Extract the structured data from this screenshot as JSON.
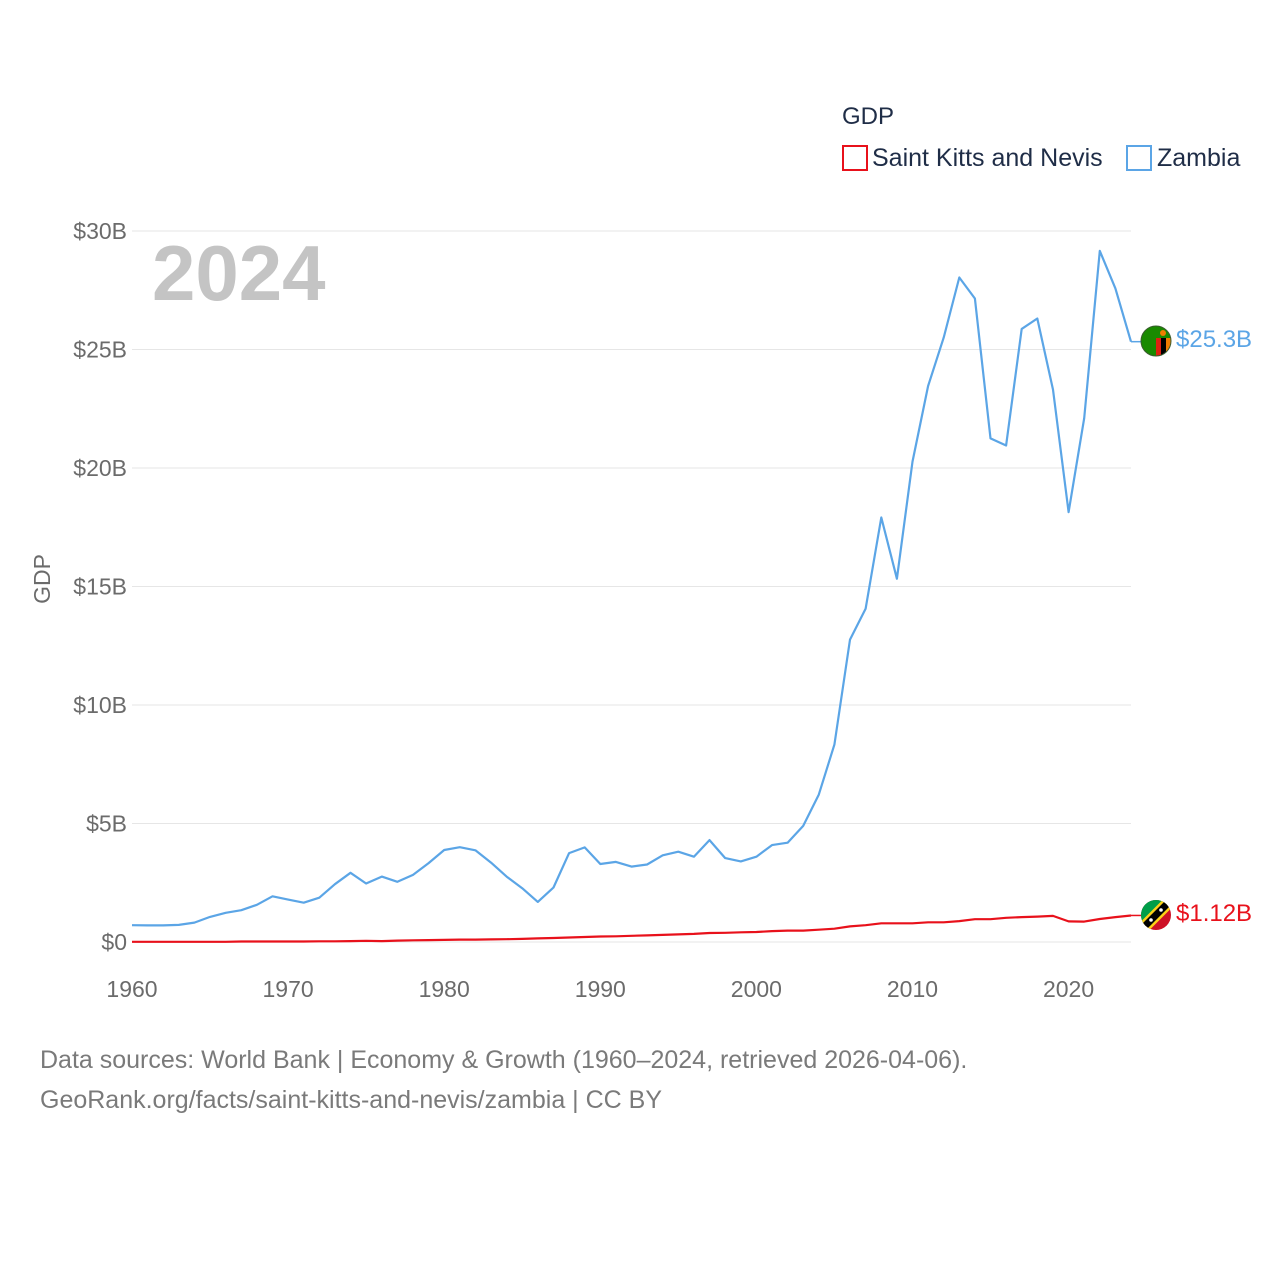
{
  "chart_data": {
    "type": "line",
    "year_label": "2024",
    "legend_title": "GDP",
    "ylabel": "GDP",
    "xlim": [
      1960,
      2024
    ],
    "ylim": [
      0,
      30
    ],
    "x_ticks": [
      1960,
      1970,
      1980,
      1990,
      2000,
      2010,
      2020
    ],
    "y_ticks": [
      {
        "value": 0,
        "label": "$0"
      },
      {
        "value": 5,
        "label": "$5B"
      },
      {
        "value": 10,
        "label": "$10B"
      },
      {
        "value": 15,
        "label": "$15B"
      },
      {
        "value": 20,
        "label": "$20B"
      },
      {
        "value": 25,
        "label": "$25B"
      },
      {
        "value": 30,
        "label": "$30B"
      }
    ],
    "unit": "billion USD",
    "x": [
      1960,
      1961,
      1962,
      1963,
      1964,
      1965,
      1966,
      1967,
      1968,
      1969,
      1970,
      1971,
      1972,
      1973,
      1974,
      1975,
      1976,
      1977,
      1978,
      1979,
      1980,
      1981,
      1982,
      1983,
      1984,
      1985,
      1986,
      1987,
      1988,
      1989,
      1990,
      1991,
      1992,
      1993,
      1994,
      1995,
      1996,
      1997,
      1998,
      1999,
      2000,
      2001,
      2002,
      2003,
      2004,
      2005,
      2006,
      2007,
      2008,
      2009,
      2010,
      2011,
      2012,
      2013,
      2014,
      2015,
      2016,
      2017,
      2018,
      2019,
      2020,
      2021,
      2022,
      2023,
      2024
    ],
    "series": [
      {
        "name": "Saint Kitts and Nevis",
        "color": "#e8111b",
        "end_label": "$1.12B",
        "flag": "saint-kitts-and-nevis-flag-icon",
        "values": [
          0.01,
          0.01,
          0.01,
          0.01,
          0.01,
          0.01,
          0.01,
          0.02,
          0.02,
          0.02,
          0.02,
          0.02,
          0.03,
          0.03,
          0.04,
          0.05,
          0.04,
          0.06,
          0.07,
          0.08,
          0.09,
          0.1,
          0.1,
          0.11,
          0.12,
          0.13,
          0.15,
          0.17,
          0.19,
          0.21,
          0.23,
          0.24,
          0.26,
          0.28,
          0.3,
          0.32,
          0.34,
          0.38,
          0.39,
          0.41,
          0.42,
          0.46,
          0.48,
          0.48,
          0.52,
          0.56,
          0.66,
          0.71,
          0.79,
          0.79,
          0.79,
          0.83,
          0.83,
          0.88,
          0.96,
          0.96,
          1.02,
          1.05,
          1.07,
          1.1,
          0.87,
          0.86,
          0.97,
          1.05,
          1.12
        ]
      },
      {
        "name": "Zambia",
        "color": "#5ba5e6",
        "end_label": "$25.3B",
        "flag": "zambia-flag-icon",
        "values": [
          0.71,
          0.7,
          0.7,
          0.72,
          0.82,
          1.06,
          1.23,
          1.34,
          1.57,
          1.93,
          1.79,
          1.66,
          1.87,
          2.44,
          2.92,
          2.47,
          2.76,
          2.54,
          2.83,
          3.33,
          3.88,
          4.0,
          3.87,
          3.35,
          2.76,
          2.27,
          1.69,
          2.3,
          3.75,
          3.99,
          3.29,
          3.38,
          3.18,
          3.27,
          3.66,
          3.81,
          3.6,
          4.3,
          3.54,
          3.4,
          3.6,
          4.09,
          4.19,
          4.9,
          6.22,
          8.33,
          12.76,
          14.06,
          17.91,
          15.33,
          20.27,
          23.46,
          25.5,
          28.04,
          27.15,
          21.25,
          20.95,
          25.87,
          26.31,
          23.31,
          18.14,
          22.1,
          29.16,
          27.58,
          25.33
        ]
      }
    ]
  },
  "footer": {
    "line1": "Data sources: World Bank | Economy & Growth (1960–2024, retrieved 2026-04-06).",
    "line2": "GeoRank.org/facts/saint-kitts-and-nevis/zambia | CC BY"
  }
}
